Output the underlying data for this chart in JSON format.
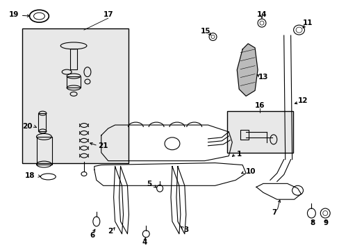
{
  "background_color": "#ffffff",
  "line_color": "#000000",
  "box_fill_color": "#e8e8e8"
}
